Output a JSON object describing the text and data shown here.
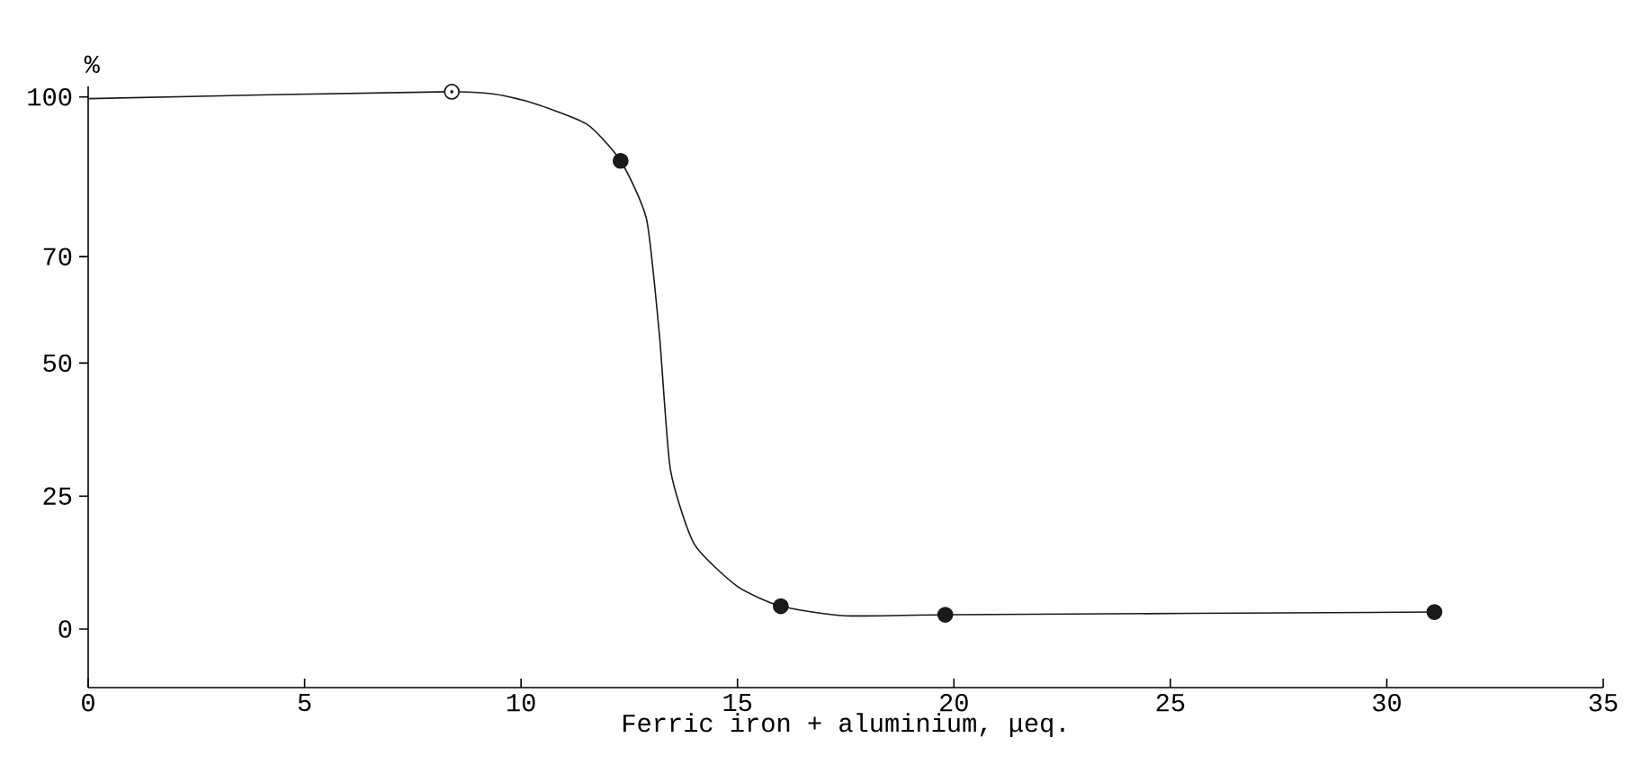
{
  "chart_data": {
    "type": "line",
    "xlabel": "Ferric iron + aluminium, μeq.",
    "ylabel": "%",
    "xlim": [
      0,
      35
    ],
    "xticks": [
      0,
      5,
      10,
      15,
      20,
      25,
      30,
      35
    ],
    "ylim": [
      -11,
      102
    ],
    "yticks": [
      0,
      25,
      50,
      70,
      100
    ],
    "grid": false,
    "series": [
      {
        "color": "#1a1a1a",
        "marker": "none",
        "line_style": "solid",
        "x": [
          0,
          8.4,
          10,
          11.5,
          12.3,
          12.9,
          13.2,
          13.45,
          14,
          15,
          16,
          17.5,
          20,
          31.1
        ],
        "values": [
          99.7,
          101,
          99.5,
          95,
          88,
          77,
          55,
          30,
          16,
          8,
          4.3,
          2.5,
          2.7,
          3.2
        ]
      },
      {
        "type": "scatter",
        "color": "#1a1a1a",
        "marker": "circle",
        "x": [
          8.4,
          12.3,
          16,
          19.8,
          31.1
        ],
        "values": [
          101,
          88,
          4.3,
          2.7,
          3.2
        ]
      }
    ]
  }
}
